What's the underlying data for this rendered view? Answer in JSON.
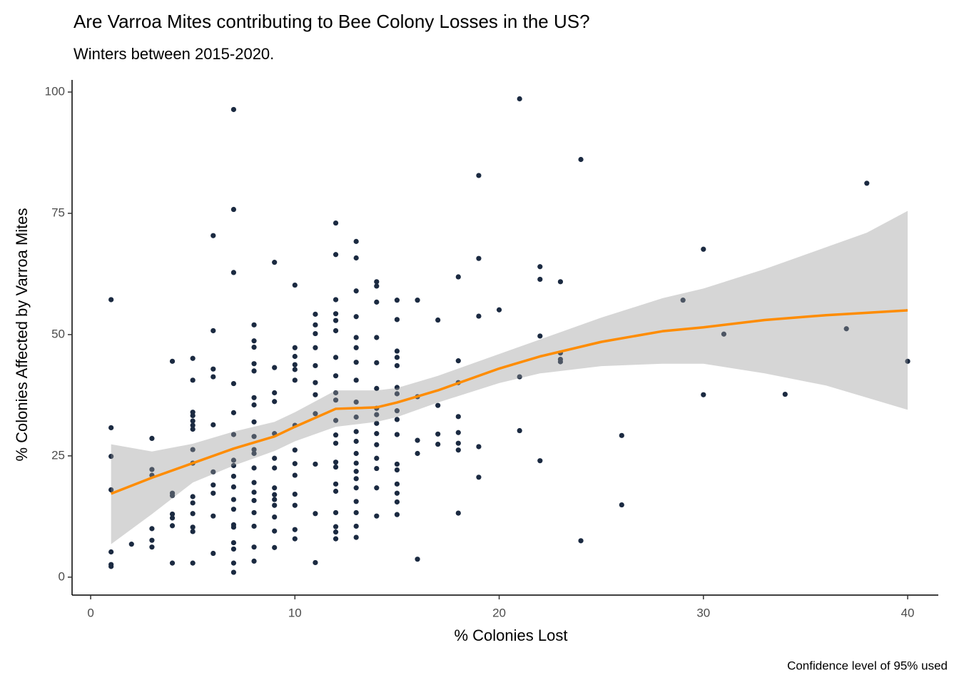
{
  "chart_data": {
    "type": "scatter",
    "title": "Are Varroa Mites contributing to Bee Colony Losses in the US?",
    "subtitle": "Winters between 2015-2020.",
    "x_label": "% Colonies Lost",
    "y_label": "% Colonies Affected by Varroa Mites",
    "caption": "Confidence level of 95% used",
    "xlim": [
      -0.91,
      41.5
    ],
    "ylim": [
      -3.7,
      102.5
    ],
    "xticks": [
      0,
      10,
      20,
      30,
      40
    ],
    "yticks": [
      0,
      25,
      50,
      75,
      100
    ],
    "points": {
      "color": "#1b2a41",
      "x": [
        1,
        1,
        1,
        1,
        1,
        1,
        1,
        2,
        3,
        3,
        3,
        3,
        3,
        3,
        4,
        4,
        4,
        4,
        4,
        4,
        4,
        5,
        5,
        5,
        5,
        5,
        5,
        5,
        5,
        5,
        5,
        5,
        5,
        5,
        5,
        5,
        6,
        6,
        6,
        6,
        6,
        6,
        6,
        6,
        6,
        6,
        7,
        7,
        7,
        7,
        7,
        7,
        7,
        7,
        7,
        7,
        7,
        7,
        7,
        7,
        7,
        7,
        7,
        7,
        8,
        8,
        8,
        8,
        8,
        8,
        8,
        8,
        8,
        8,
        8,
        8,
        8,
        8,
        8,
        8,
        8,
        8,
        8,
        9,
        9,
        9,
        9,
        9,
        9,
        9,
        9,
        9,
        9,
        9,
        9,
        9,
        9,
        10,
        10,
        10,
        10,
        10,
        10,
        10,
        10,
        10,
        10,
        10,
        10,
        10,
        10,
        11,
        11,
        11,
        11,
        11,
        11,
        11,
        11,
        11,
        11,
        11,
        12,
        12,
        12,
        12,
        12,
        12,
        12,
        12,
        12,
        12,
        12,
        12,
        12,
        12,
        12,
        12,
        12,
        12,
        12,
        12,
        12,
        13,
        13,
        13,
        13,
        13,
        13,
        13,
        13,
        13,
        13,
        13,
        13,
        13,
        13,
        13,
        13,
        13,
        13,
        13,
        13,
        13,
        14,
        14,
        14,
        14,
        14,
        14,
        14,
        14,
        14,
        14,
        14,
        14,
        14,
        14,
        14,
        15,
        15,
        15,
        15,
        15,
        15,
        15,
        15,
        15,
        15,
        15,
        15,
        15,
        15,
        15,
        15,
        16,
        16,
        16,
        16,
        16,
        17,
        17,
        17,
        17,
        18,
        18,
        18,
        18,
        18,
        18,
        18,
        18,
        19,
        19,
        19,
        19,
        19,
        20,
        21,
        21,
        21,
        22,
        22,
        22,
        22,
        23,
        23,
        23,
        23,
        24,
        24,
        26,
        26,
        29,
        30,
        30,
        31,
        34,
        37,
        38,
        40
      ],
      "y": [
        57.2,
        30.8,
        24.9,
        18,
        5.2,
        2.6,
        2.2,
        6.8,
        28.6,
        22.2,
        21,
        10,
        7.6,
        6.2,
        44.5,
        17.3,
        16.8,
        13,
        12.2,
        10.6,
        2.9,
        45.1,
        40.6,
        34,
        33.3,
        32.2,
        31.3,
        30.5,
        26.3,
        23.5,
        16.6,
        15.3,
        13.1,
        10.3,
        9.4,
        2.9,
        70.4,
        50.8,
        42.9,
        41.3,
        31.4,
        21.7,
        19,
        17.3,
        12.6,
        4.9,
        96.4,
        75.8,
        62.8,
        39.9,
        33.9,
        29.4,
        24.1,
        23,
        20.8,
        18.6,
        16,
        14,
        10.8,
        10.3,
        7.1,
        5.8,
        2.9,
        1,
        52,
        48.7,
        47.4,
        44,
        42.5,
        37,
        35.5,
        32,
        29,
        26.3,
        25.5,
        22.5,
        19.5,
        17.5,
        15.8,
        13.3,
        10.5,
        6.2,
        3.3,
        64.9,
        43.2,
        38,
        36.2,
        29.6,
        24.5,
        22.5,
        18.4,
        17,
        16,
        14.8,
        12.4,
        9.5,
        6.1,
        60.2,
        47.3,
        45.5,
        43.8,
        42.8,
        40.6,
        31.3,
        26.2,
        23.4,
        21,
        17.1,
        14.8,
        9.8,
        7.9,
        54.2,
        52,
        50.2,
        47.3,
        43.6,
        40.1,
        37.6,
        33.7,
        23.3,
        13.1,
        3,
        73,
        66.5,
        57.2,
        54.3,
        52.9,
        50.8,
        45.3,
        41.5,
        38,
        36.5,
        32.3,
        29.3,
        27.6,
        23.7,
        22.7,
        19.2,
        17.7,
        13.3,
        10.4,
        9.3,
        7.9,
        69.2,
        65.8,
        59,
        53.7,
        49.4,
        47.3,
        44.3,
        40.6,
        36.1,
        33,
        30,
        28,
        25.5,
        23.5,
        21.8,
        20.3,
        18.4,
        15.6,
        13.3,
        10.5,
        8.2,
        60.9,
        60,
        56.7,
        49.4,
        44.2,
        38.9,
        34.8,
        33.5,
        31.7,
        29.6,
        27.3,
        24.5,
        22.4,
        18.4,
        12.6,
        57.1,
        53.1,
        46.6,
        45.3,
        43.6,
        39.1,
        37.8,
        34.3,
        32.5,
        29.4,
        23.3,
        22.1,
        19.2,
        17.3,
        15.5,
        12.9,
        57.1,
        37.2,
        28.2,
        25.5,
        3.7,
        53,
        35.4,
        29.5,
        27.4,
        61.9,
        44.6,
        40.1,
        33.1,
        29.8,
        27.6,
        26.2,
        13.2,
        82.8,
        65.7,
        53.8,
        26.9,
        20.6,
        55.1,
        98.6,
        41.3,
        30.2,
        64,
        61.4,
        49.7,
        24,
        60.9,
        46.2,
        44.9,
        44.4,
        86.1,
        7.5,
        29.2,
        14.9,
        57.1,
        67.6,
        37.6,
        50.1,
        37.7,
        51.2,
        81.2,
        44.5
      ]
    },
    "fit": {
      "color": "#ff8c00",
      "band_color": "#999999",
      "band_opacity": 0.4,
      "x": [
        1,
        3,
        5,
        7,
        9,
        10,
        12,
        14,
        15,
        17,
        20,
        22,
        25,
        28,
        30,
        33,
        36,
        38,
        40
      ],
      "values": [
        17.2,
        20.5,
        23.5,
        26.5,
        29,
        31,
        34.7,
        35,
        36,
        38.5,
        43,
        45.5,
        48.5,
        50.7,
        51.5,
        53,
        54,
        54.5,
        55
      ],
      "lower": [
        6.8,
        13,
        19.5,
        23,
        26,
        28,
        31,
        32,
        33,
        36,
        40,
        42,
        43.5,
        44,
        44,
        42,
        39.5,
        37,
        34.5
      ],
      "upper": [
        27.4,
        25.9,
        27.5,
        30,
        32,
        34,
        38.5,
        38.5,
        39,
        41.5,
        46,
        49,
        53.5,
        57.5,
        59.5,
        63.5,
        68,
        71,
        75.5
      ]
    }
  }
}
